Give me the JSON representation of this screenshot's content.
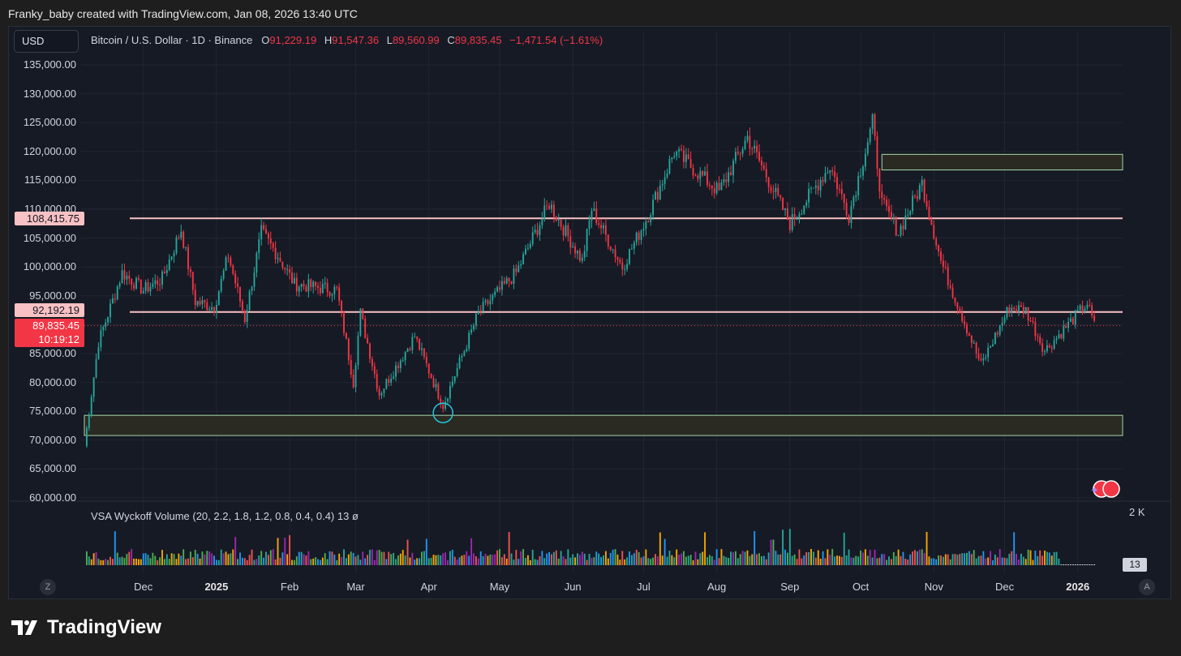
{
  "header": {
    "caption": "Franky_baby created with TradingView.com, Jan 08, 2026 13:40 UTC"
  },
  "toolbar": {
    "currency": "USD"
  },
  "legend": {
    "symbol": "Bitcoin / U.S. Dollar · 1D · Binance",
    "o_label": "O",
    "o_value": "91,229.19",
    "h_label": "H",
    "h_value": "91,547.36",
    "l_label": "L",
    "l_value": "89,560.99",
    "c_label": "C",
    "c_value": "89,835.45",
    "change": "−1,471.54 (−1.61%)"
  },
  "price_tags": {
    "resistance": "108,415.75",
    "support": "92,192.19",
    "last_price": "89,835.45",
    "countdown": "10:19:12"
  },
  "volume_pane": {
    "title": "VSA Wyckoff Volume (20, 2.2, 1.8, 1.2, 0.8, 0.4, 0.4)  13  ø",
    "max_label": "2 K",
    "badge": "13"
  },
  "buttons": {
    "left_auto": "Z",
    "right_auto": "A"
  },
  "brand": {
    "name": "TradingView"
  },
  "colors": {
    "up": "#26a69a",
    "down": "#f23645",
    "background": "#161a25",
    "level_line": "#f8c1c3",
    "zone_border": "#a5d6a7",
    "zone_fill": "#2a2a22",
    "marker": "#26c6da"
  },
  "chart_data": {
    "type": "candlestick",
    "title": "Bitcoin / U.S. Dollar · 1D · Binance",
    "timeframe": "1D",
    "ylim": [
      60000,
      135000
    ],
    "y_ticks": [
      "135,000.00",
      "130,000.00",
      "125,000.00",
      "120,000.00",
      "115,000.00",
      "110,000.00",
      "105,000.00",
      "100,000.00",
      "95,000.00",
      "90,000.00",
      "85,000.00",
      "80,000.00",
      "75,000.00",
      "70,000.00",
      "65,000.00",
      "60,000.00"
    ],
    "x_ticks": [
      {
        "label": "Dec",
        "bold": false
      },
      {
        "label": "2025",
        "bold": true
      },
      {
        "label": "Feb",
        "bold": false
      },
      {
        "label": "Mar",
        "bold": false
      },
      {
        "label": "Apr",
        "bold": false
      },
      {
        "label": "May",
        "bold": false
      },
      {
        "label": "Jun",
        "bold": false
      },
      {
        "label": "Jul",
        "bold": false
      },
      {
        "label": "Aug",
        "bold": false
      },
      {
        "label": "Sep",
        "bold": false
      },
      {
        "label": "Oct",
        "bold": false
      },
      {
        "label": "Nov",
        "bold": false
      },
      {
        "label": "Dec",
        "bold": false
      },
      {
        "label": "2026",
        "bold": true
      }
    ],
    "horizontal_levels": [
      108415.75,
      92192.19
    ],
    "last_price": 89835.45,
    "zones": [
      {
        "top": 119500,
        "bottom": 116800,
        "start": "2025-10-10"
      },
      {
        "top": 74300,
        "bottom": 70800,
        "start": "2024-11-06"
      }
    ],
    "marker": {
      "date": "2025-04-07",
      "price": 75000
    },
    "price_path": [
      {
        "date": "2024-11-06",
        "price": 69000
      },
      {
        "date": "2024-11-08",
        "price": 75000
      },
      {
        "date": "2024-11-12",
        "price": 87000
      },
      {
        "date": "2024-11-22",
        "price": 99000
      },
      {
        "date": "2024-12-01",
        "price": 96000
      },
      {
        "date": "2024-12-09",
        "price": 98000
      },
      {
        "date": "2024-12-17",
        "price": 106500
      },
      {
        "date": "2024-12-23",
        "price": 94000
      },
      {
        "date": "2024-12-31",
        "price": 93000
      },
      {
        "date": "2025-01-06",
        "price": 102000
      },
      {
        "date": "2025-01-13",
        "price": 91000
      },
      {
        "date": "2025-01-20",
        "price": 106000
      },
      {
        "date": "2025-01-27",
        "price": 102000
      },
      {
        "date": "2025-02-03",
        "price": 97000
      },
      {
        "date": "2025-02-21",
        "price": 96000
      },
      {
        "date": "2025-02-28",
        "price": 80000
      },
      {
        "date": "2025-03-03",
        "price": 92000
      },
      {
        "date": "2025-03-11",
        "price": 78000
      },
      {
        "date": "2025-03-26",
        "price": 88000
      },
      {
        "date": "2025-04-07",
        "price": 76000
      },
      {
        "date": "2025-04-22",
        "price": 92000
      },
      {
        "date": "2025-05-08",
        "price": 99000
      },
      {
        "date": "2025-05-22",
        "price": 111000
      },
      {
        "date": "2025-06-05",
        "price": 101000
      },
      {
        "date": "2025-06-09",
        "price": 110000
      },
      {
        "date": "2025-06-22",
        "price": 100000
      },
      {
        "date": "2025-07-03",
        "price": 109000
      },
      {
        "date": "2025-07-14",
        "price": 120000
      },
      {
        "date": "2025-08-02",
        "price": 113000
      },
      {
        "date": "2025-08-14",
        "price": 122500
      },
      {
        "date": "2025-09-01",
        "price": 107500
      },
      {
        "date": "2025-09-18",
        "price": 117500
      },
      {
        "date": "2025-09-26",
        "price": 109000
      },
      {
        "date": "2025-10-06",
        "price": 125000
      },
      {
        "date": "2025-10-10",
        "price": 111000
      },
      {
        "date": "2025-10-17",
        "price": 106000
      },
      {
        "date": "2025-10-27",
        "price": 114500
      },
      {
        "date": "2025-11-04",
        "price": 101000
      },
      {
        "date": "2025-11-21",
        "price": 83000
      },
      {
        "date": "2025-12-03",
        "price": 93000
      },
      {
        "date": "2025-12-10",
        "price": 92500
      },
      {
        "date": "2025-12-18",
        "price": 85500
      },
      {
        "date": "2026-01-05",
        "price": 93700
      },
      {
        "date": "2026-01-08",
        "price": 89835
      }
    ],
    "volume_ylim": [
      0,
      2000
    ]
  }
}
